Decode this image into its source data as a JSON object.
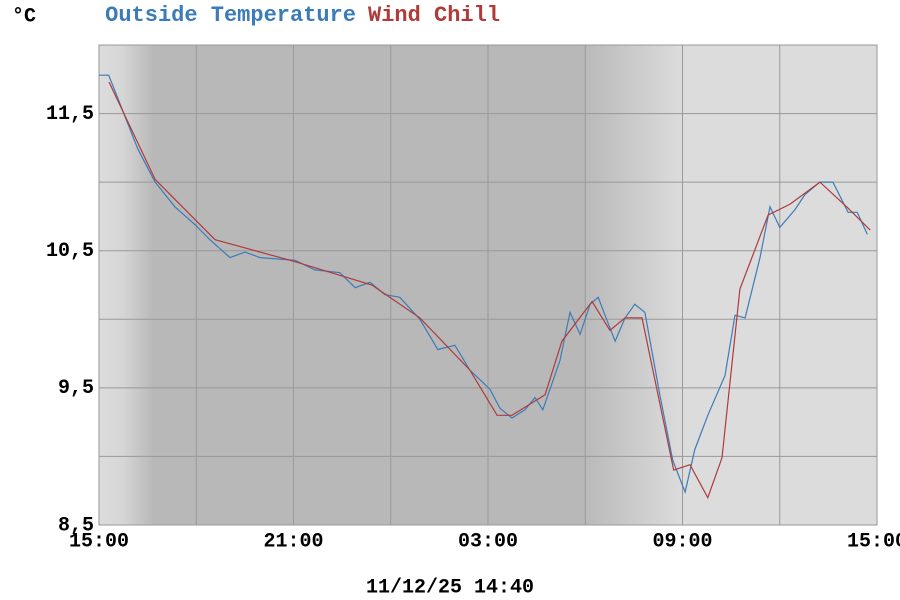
{
  "chart_data": {
    "type": "line",
    "series": [
      {
        "name": "Outside Temperature",
        "color": "#3b7bb8",
        "x": [
          0,
          0.3,
          0.65,
          1.2,
          1.73,
          2.34,
          2.96,
          3.42,
          4.04,
          4.5,
          4.97,
          6.05,
          6.66,
          7.43,
          7.9,
          8.36,
          8.82,
          9.28,
          9.9,
          10.45,
          10.98,
          11.44,
          12.06,
          12.37,
          12.74,
          13.14,
          13.45,
          13.69,
          14.22,
          14.53,
          14.84,
          15.15,
          15.4,
          15.61,
          15.92,
          16.23,
          16.53,
          16.84,
          17.3,
          17.7,
          18.08,
          18.38,
          18.78,
          19.31,
          19.62,
          19.93,
          20.39,
          20.7,
          21.0,
          21.47,
          21.78,
          22.24,
          22.64,
          23.11,
          23.39,
          23.7
        ],
        "values": [
          11.78,
          11.78,
          11.57,
          11.24,
          11.0,
          10.82,
          10.69,
          10.58,
          10.45,
          10.49,
          10.45,
          10.43,
          10.36,
          10.34,
          10.23,
          10.27,
          10.18,
          10.16,
          10.0,
          9.78,
          9.81,
          9.63,
          9.49,
          9.35,
          9.28,
          9.34,
          9.43,
          9.34,
          9.7,
          10.05,
          9.89,
          10.11,
          10.16,
          10.03,
          9.84,
          10.01,
          10.11,
          10.05,
          9.45,
          8.97,
          8.74,
          9.05,
          9.3,
          9.59,
          10.03,
          10.01,
          10.45,
          10.82,
          10.67,
          10.8,
          10.91,
          11.0,
          11.0,
          10.78,
          10.78,
          10.62
        ]
      },
      {
        "name": "Wind Chill",
        "color": "#b03a3a",
        "x": [
          0.31,
          1.73,
          3.58,
          6.05,
          8.42,
          9.9,
          11.44,
          12.28,
          12.74,
          13.76,
          14.28,
          15.21,
          15.76,
          16.23,
          16.75,
          17.73,
          18.23,
          18.78,
          19.22,
          19.77,
          20.64,
          21.32,
          22.24,
          23.11,
          23.79
        ],
        "values": [
          11.73,
          11.02,
          10.58,
          10.42,
          10.25,
          10.01,
          9.63,
          9.3,
          9.3,
          9.45,
          9.84,
          10.13,
          9.92,
          10.01,
          10.01,
          8.9,
          8.94,
          8.7,
          8.99,
          10.22,
          10.76,
          10.84,
          11.0,
          10.81,
          10.65
        ]
      }
    ],
    "y_unit": "°C",
    "timestamp": "11/12/25 14:40",
    "xlim": [
      0,
      24
    ],
    "xticks": [
      {
        "value": 0,
        "label": "15:00"
      },
      {
        "value": 6,
        "label": "21:00"
      },
      {
        "value": 12,
        "label": "03:00"
      },
      {
        "value": 18,
        "label": "09:00"
      },
      {
        "value": 24,
        "label": "15:00"
      }
    ],
    "xgrid_minor": [
      3,
      9,
      15,
      21
    ],
    "ylim": [
      8.5,
      12.0
    ],
    "yticks": [
      {
        "value": 8.5,
        "label": "8,5"
      },
      {
        "value": 9.5,
        "label": "9,5"
      },
      {
        "value": 10.5,
        "label": "10,5"
      },
      {
        "value": 11.5,
        "label": "11,5"
      }
    ],
    "ygrid_minor": [
      9.0,
      10.0,
      11.0
    ],
    "grid": true
  }
}
